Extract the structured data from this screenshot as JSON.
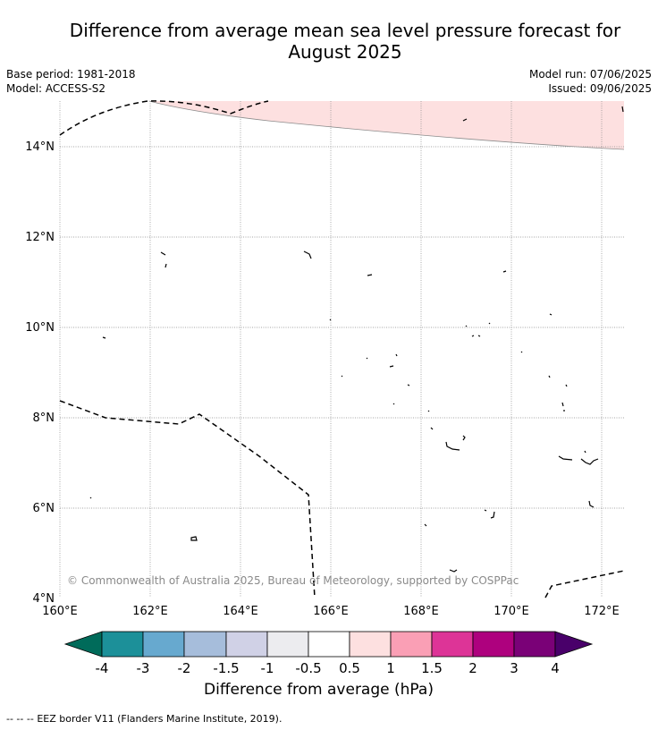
{
  "header": {
    "title_line1": "Difference from average mean sea level pressure forecast for",
    "title_line2": "August 2025",
    "base_period": "Base period: 1981-2018",
    "model": "Model: ACCESS-S2",
    "model_run": "Model run: 07/06/2025",
    "issued": "Issued: 09/06/2025"
  },
  "map": {
    "lon_range": [
      160,
      172.5
    ],
    "lat_range": [
      3.9,
      14.9
    ],
    "x_ticks": [
      "160°E",
      "162°E",
      "164°E",
      "166°E",
      "168°E",
      "170°E",
      "172°E"
    ],
    "y_ticks": [
      "4°N",
      "6°N",
      "8°N",
      "10°N",
      "12°N",
      "14°N"
    ],
    "gridlines": true,
    "shaded_area_category": "0.5 to 1",
    "copyright": "© Commonwealth of Australia 2025, Bureau of Meteorology, supported by COSPPac"
  },
  "colorbar": {
    "label": "Difference from average (hPa)",
    "ticks": [
      "-4",
      "-3",
      "-2",
      "-1.5",
      "-1",
      "-0.5",
      "0.5",
      "1",
      "1.5",
      "2",
      "3",
      "4"
    ],
    "colors": [
      "#006b5a",
      "#1c9099",
      "#67a9cf",
      "#a6bddb",
      "#d0d1e6",
      "#ececef",
      "#ffffff",
      "#fde0e0",
      "#fa9fb5",
      "#dd3497",
      "#ae017e",
      "#7a0177",
      "#49006a"
    ]
  },
  "footer": {
    "legend_symbol": "--  --  --",
    "legend_text": "EEZ border V11 (Flanders Marine Institute, 2019)."
  }
}
